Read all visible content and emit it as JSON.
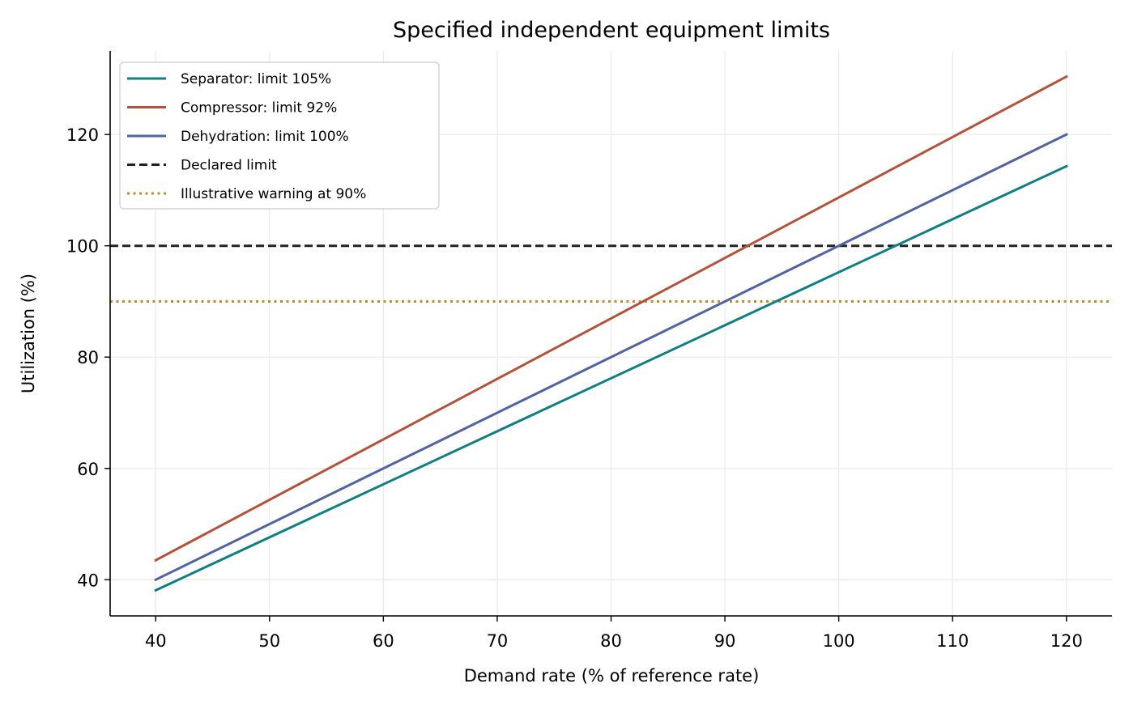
{
  "chart_data": {
    "type": "line",
    "title": "Specified independent equipment limits",
    "xlabel": "Demand rate (% of reference rate)",
    "ylabel": "Utilization (%)",
    "xlim": [
      36,
      124
    ],
    "ylim": [
      33.5,
      135
    ],
    "xticks": [
      40,
      50,
      60,
      70,
      80,
      90,
      100,
      110,
      120
    ],
    "yticks": [
      40,
      60,
      80,
      100,
      120
    ],
    "grid": true,
    "legend_position": "top-left",
    "series": [
      {
        "name": "Separator: limit 105%",
        "color": "#0f7f86",
        "style": "solid",
        "x": [
          40,
          120
        ],
        "y": [
          38.1,
          114.3
        ]
      },
      {
        "name": "Compressor: limit 92%",
        "color": "#b5523b",
        "style": "solid",
        "x": [
          40,
          120
        ],
        "y": [
          43.5,
          130.4
        ]
      },
      {
        "name": "Dehydration: limit 100%",
        "color": "#5063a3",
        "style": "solid",
        "x": [
          40,
          120
        ],
        "y": [
          40,
          120
        ]
      }
    ],
    "reference_lines": [
      {
        "name": "Declared limit",
        "y": 100,
        "color": "#222222",
        "style": "dashed"
      },
      {
        "name": "Illustrative warning at 90%",
        "y": 90,
        "color": "#c08a2e",
        "style": "dotted"
      }
    ]
  }
}
